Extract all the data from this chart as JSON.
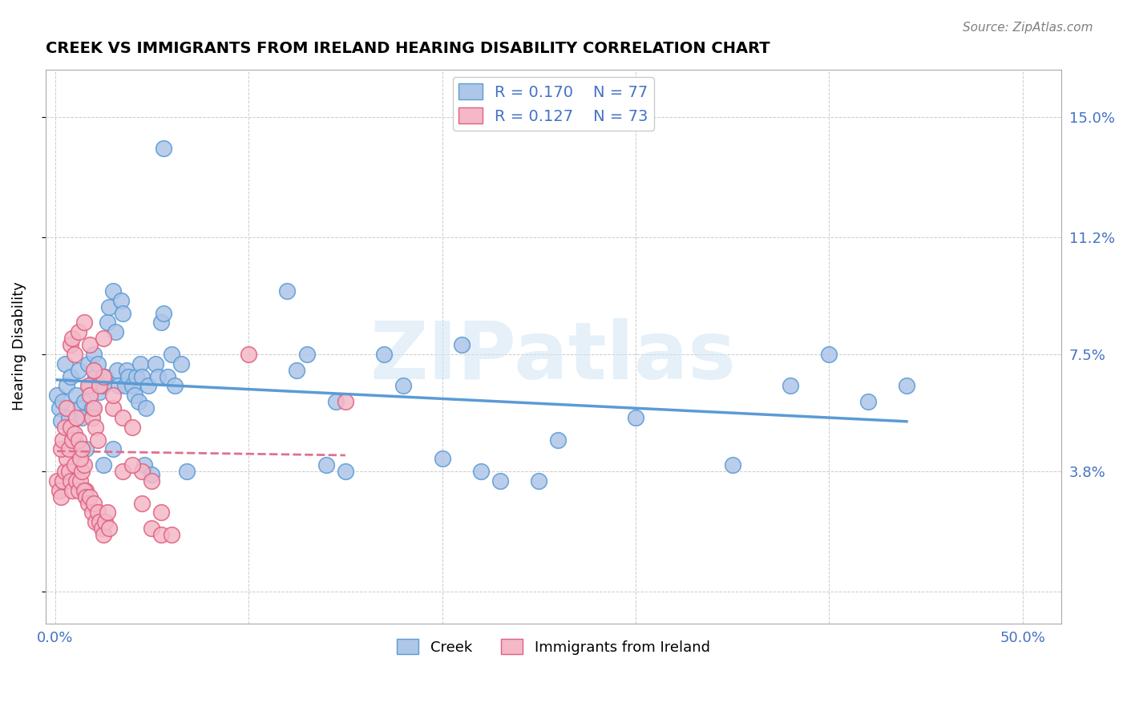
{
  "title": "CREEK VS IMMIGRANTS FROM IRELAND HEARING DISABILITY CORRELATION CHART",
  "source": "Source: ZipAtlas.com",
  "ylabel": "Hearing Disability",
  "yticks": [
    0.0,
    0.038,
    0.075,
    0.112,
    0.15
  ],
  "ytick_labels": [
    "",
    "3.8%",
    "7.5%",
    "11.2%",
    "15.0%"
  ],
  "xticks": [
    0.0,
    0.1,
    0.2,
    0.3,
    0.4,
    0.5
  ],
  "xtick_labels": [
    "0.0%",
    "",
    "",
    "",
    "",
    "50.0%"
  ],
  "xlim": [
    -0.005,
    0.52
  ],
  "ylim": [
    -0.01,
    0.165
  ],
  "creek_color": "#aec6e8",
  "creek_edge_color": "#5b9bd5",
  "ireland_color": "#f4b8c8",
  "ireland_edge_color": "#e0607e",
  "creek_R": 0.17,
  "creek_N": 77,
  "ireland_R": 0.127,
  "ireland_N": 73,
  "trend_creek_color": "#5b9bd5",
  "trend_ireland_color": "#e07090",
  "watermark": "ZIPatlas",
  "creek_points": [
    [
      0.001,
      0.062
    ],
    [
      0.002,
      0.058
    ],
    [
      0.003,
      0.054
    ],
    [
      0.004,
      0.06
    ],
    [
      0.005,
      0.072
    ],
    [
      0.006,
      0.065
    ],
    [
      0.007,
      0.055
    ],
    [
      0.008,
      0.068
    ],
    [
      0.009,
      0.05
    ],
    [
      0.01,
      0.048
    ],
    [
      0.011,
      0.062
    ],
    [
      0.012,
      0.07
    ],
    [
      0.013,
      0.058
    ],
    [
      0.014,
      0.055
    ],
    [
      0.015,
      0.06
    ],
    [
      0.016,
      0.045
    ],
    [
      0.017,
      0.072
    ],
    [
      0.018,
      0.065
    ],
    [
      0.019,
      0.058
    ],
    [
      0.02,
      0.075
    ],
    [
      0.021,
      0.068
    ],
    [
      0.022,
      0.072
    ],
    [
      0.023,
      0.063
    ],
    [
      0.025,
      0.065
    ],
    [
      0.026,
      0.068
    ],
    [
      0.027,
      0.085
    ],
    [
      0.028,
      0.09
    ],
    [
      0.03,
      0.095
    ],
    [
      0.031,
      0.082
    ],
    [
      0.032,
      0.07
    ],
    [
      0.033,
      0.065
    ],
    [
      0.034,
      0.092
    ],
    [
      0.035,
      0.088
    ],
    [
      0.036,
      0.065
    ],
    [
      0.037,
      0.07
    ],
    [
      0.038,
      0.068
    ],
    [
      0.04,
      0.065
    ],
    [
      0.041,
      0.062
    ],
    [
      0.042,
      0.068
    ],
    [
      0.043,
      0.06
    ],
    [
      0.044,
      0.072
    ],
    [
      0.045,
      0.068
    ],
    [
      0.046,
      0.04
    ],
    [
      0.047,
      0.058
    ],
    [
      0.048,
      0.065
    ],
    [
      0.05,
      0.037
    ],
    [
      0.052,
      0.072
    ],
    [
      0.053,
      0.068
    ],
    [
      0.055,
      0.085
    ],
    [
      0.056,
      0.088
    ],
    [
      0.058,
      0.068
    ],
    [
      0.06,
      0.075
    ],
    [
      0.062,
      0.065
    ],
    [
      0.065,
      0.072
    ],
    [
      0.068,
      0.038
    ],
    [
      0.025,
      0.04
    ],
    [
      0.03,
      0.045
    ],
    [
      0.12,
      0.095
    ],
    [
      0.125,
      0.07
    ],
    [
      0.13,
      0.075
    ],
    [
      0.14,
      0.04
    ],
    [
      0.145,
      0.06
    ],
    [
      0.15,
      0.038
    ],
    [
      0.17,
      0.075
    ],
    [
      0.18,
      0.065
    ],
    [
      0.2,
      0.042
    ],
    [
      0.21,
      0.078
    ],
    [
      0.22,
      0.038
    ],
    [
      0.23,
      0.035
    ],
    [
      0.25,
      0.035
    ],
    [
      0.26,
      0.048
    ],
    [
      0.3,
      0.055
    ],
    [
      0.35,
      0.04
    ],
    [
      0.38,
      0.065
    ],
    [
      0.4,
      0.075
    ],
    [
      0.42,
      0.06
    ],
    [
      0.44,
      0.065
    ],
    [
      0.056,
      0.14
    ]
  ],
  "ireland_points": [
    [
      0.001,
      0.035
    ],
    [
      0.002,
      0.032
    ],
    [
      0.003,
      0.03
    ],
    [
      0.004,
      0.035
    ],
    [
      0.005,
      0.038
    ],
    [
      0.006,
      0.042
    ],
    [
      0.007,
      0.038
    ],
    [
      0.008,
      0.035
    ],
    [
      0.009,
      0.032
    ],
    [
      0.01,
      0.04
    ],
    [
      0.011,
      0.035
    ],
    [
      0.012,
      0.032
    ],
    [
      0.013,
      0.035
    ],
    [
      0.014,
      0.038
    ],
    [
      0.015,
      0.04
    ],
    [
      0.016,
      0.032
    ],
    [
      0.017,
      0.065
    ],
    [
      0.018,
      0.062
    ],
    [
      0.019,
      0.055
    ],
    [
      0.02,
      0.058
    ],
    [
      0.021,
      0.052
    ],
    [
      0.022,
      0.048
    ],
    [
      0.003,
      0.045
    ],
    [
      0.004,
      0.048
    ],
    [
      0.005,
      0.052
    ],
    [
      0.006,
      0.058
    ],
    [
      0.007,
      0.045
    ],
    [
      0.008,
      0.052
    ],
    [
      0.009,
      0.048
    ],
    [
      0.01,
      0.05
    ],
    [
      0.011,
      0.055
    ],
    [
      0.012,
      0.048
    ],
    [
      0.013,
      0.042
    ],
    [
      0.014,
      0.045
    ],
    [
      0.015,
      0.032
    ],
    [
      0.016,
      0.03
    ],
    [
      0.017,
      0.028
    ],
    [
      0.018,
      0.03
    ],
    [
      0.019,
      0.025
    ],
    [
      0.02,
      0.028
    ],
    [
      0.021,
      0.022
    ],
    [
      0.022,
      0.025
    ],
    [
      0.023,
      0.022
    ],
    [
      0.024,
      0.02
    ],
    [
      0.025,
      0.018
    ],
    [
      0.026,
      0.022
    ],
    [
      0.027,
      0.025
    ],
    [
      0.028,
      0.02
    ],
    [
      0.023,
      0.065
    ],
    [
      0.025,
      0.068
    ],
    [
      0.03,
      0.058
    ],
    [
      0.035,
      0.055
    ],
    [
      0.04,
      0.052
    ],
    [
      0.045,
      0.038
    ],
    [
      0.05,
      0.02
    ],
    [
      0.055,
      0.018
    ],
    [
      0.008,
      0.078
    ],
    [
      0.009,
      0.08
    ],
    [
      0.01,
      0.075
    ],
    [
      0.012,
      0.082
    ],
    [
      0.015,
      0.085
    ],
    [
      0.018,
      0.078
    ],
    [
      0.02,
      0.07
    ],
    [
      0.025,
      0.08
    ],
    [
      0.03,
      0.062
    ],
    [
      0.035,
      0.038
    ],
    [
      0.04,
      0.04
    ],
    [
      0.045,
      0.028
    ],
    [
      0.05,
      0.035
    ],
    [
      0.055,
      0.025
    ],
    [
      0.06,
      0.018
    ],
    [
      0.1,
      0.075
    ],
    [
      0.15,
      0.06
    ]
  ]
}
